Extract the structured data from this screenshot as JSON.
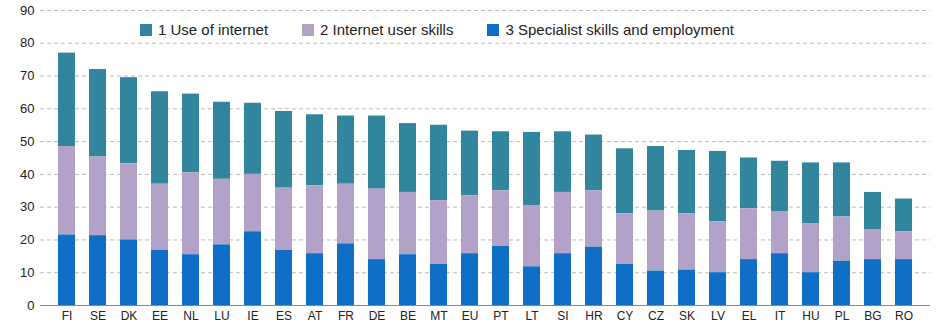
{
  "chart_data": {
    "type": "bar",
    "stacked": true,
    "grid": true,
    "legend": "top",
    "categories": [
      "FI",
      "SE",
      "DK",
      "EE",
      "NL",
      "LU",
      "IE",
      "ES",
      "AT",
      "FR",
      "DE",
      "BE",
      "MT",
      "EU",
      "PT",
      "LT",
      "SI",
      "HR",
      "CY",
      "CZ",
      "SK",
      "LV",
      "EL",
      "IT",
      "HU",
      "PL",
      "BG",
      "RO"
    ],
    "series": [
      {
        "name": "1 Use of internet",
        "color": "#31859c",
        "values": [
          28.5,
          26.7,
          26.3,
          28.2,
          24,
          23.5,
          21.7,
          23.4,
          21.7,
          20.8,
          22.3,
          21,
          23,
          19.7,
          18,
          22.3,
          18.5,
          17,
          19.8,
          19.7,
          19.3,
          21.5,
          15.5,
          15.5,
          18.5,
          16.5,
          11.5,
          10
        ]
      },
      {
        "name": "2 Internet user skills",
        "color": "#b3a2c7",
        "values": [
          27,
          24,
          23.2,
          20.2,
          25,
          20,
          17.5,
          19,
          20.7,
          18.2,
          21.5,
          19,
          19.5,
          17.7,
          17,
          18.7,
          18.7,
          17.2,
          15.5,
          18.3,
          17.2,
          15.5,
          15.5,
          12.7,
          15,
          13.5,
          9,
          8.5
        ]
      },
      {
        "name": "3 Specialist skills and employment",
        "color": "#0f6fc6",
        "values": [
          21.5,
          21.3,
          20,
          16.8,
          15.5,
          18.5,
          22.5,
          16.8,
          15.8,
          18.8,
          14,
          15.5,
          12.5,
          15.8,
          18,
          11.8,
          15.8,
          17.8,
          12.5,
          10.5,
          10.8,
          10,
          14,
          15.8,
          10,
          13.5,
          14,
          14
        ]
      }
    ],
    "ylim": [
      0,
      90
    ],
    "yticks": [
      0,
      10,
      20,
      30,
      40,
      50,
      60,
      70,
      80,
      90
    ]
  }
}
